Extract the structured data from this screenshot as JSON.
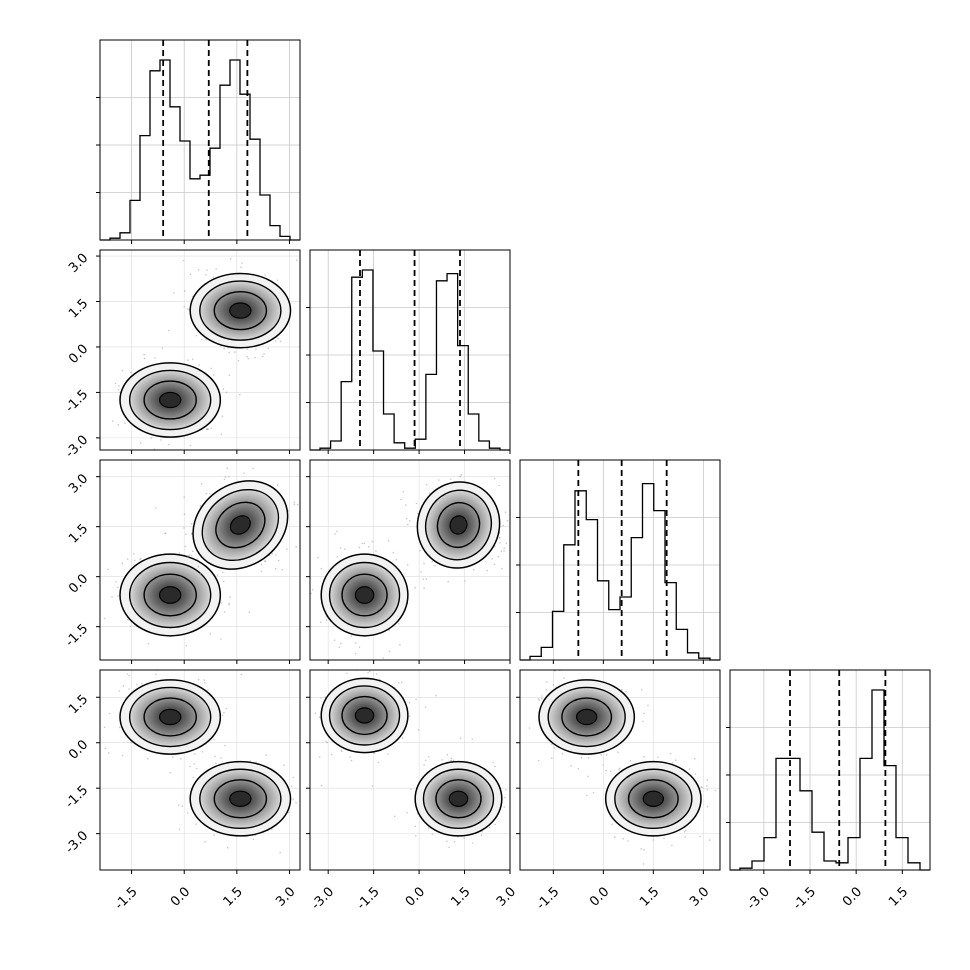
{
  "chart_data": {
    "type": "corner",
    "n_params": 4,
    "grid": true,
    "hist_lines": [
      [
        -0.6,
        0.7,
        1.8
      ],
      [
        -1.95,
        -0.15,
        1.35
      ],
      [
        -0.75,
        0.55,
        1.9
      ],
      [
        -2.15,
        -0.55,
        0.95
      ]
    ],
    "hist_values": [
      [
        0.01,
        0.04,
        0.22,
        0.58,
        0.94,
        1.0,
        0.74,
        0.55,
        0.34,
        0.36,
        0.51,
        0.86,
        1.0,
        0.81,
        0.56,
        0.25,
        0.08,
        0.02
      ],
      [
        0.01,
        0.05,
        0.38,
        0.96,
        1.0,
        0.55,
        0.2,
        0.04,
        0.01,
        0.06,
        0.42,
        0.94,
        0.98,
        0.58,
        0.2,
        0.05,
        0.01
      ],
      [
        0.02,
        0.07,
        0.27,
        0.64,
        0.94,
        0.78,
        0.44,
        0.28,
        0.35,
        0.68,
        0.98,
        0.83,
        0.43,
        0.17,
        0.04,
        0.01
      ],
      [
        0.01,
        0.05,
        0.18,
        0.62,
        0.62,
        0.44,
        0.21,
        0.05,
        0.04,
        0.18,
        0.62,
        1.0,
        0.58,
        0.18,
        0.04
      ]
    ],
    "blobs": [
      {
        "row": 1,
        "col": 0,
        "centers": [
          [
            -0.4,
            -1.75
          ],
          [
            1.6,
            1.2
          ]
        ]
      },
      {
        "row": 2,
        "col": 0,
        "centers": [
          [
            -0.4,
            -0.55
          ],
          [
            1.6,
            1.55
          ]
        ]
      },
      {
        "row": 2,
        "col": 1,
        "centers": [
          [
            -1.8,
            -0.55
          ],
          [
            1.3,
            1.55
          ]
        ]
      },
      {
        "row": 3,
        "col": 0,
        "centers": [
          [
            -0.4,
            0.85
          ],
          [
            1.6,
            -1.85
          ]
        ]
      },
      {
        "row": 3,
        "col": 1,
        "centers": [
          [
            -1.8,
            0.9
          ],
          [
            1.3,
            -1.85
          ]
        ]
      },
      {
        "row": 3,
        "col": 2,
        "centers": [
          [
            -0.5,
            0.85
          ],
          [
            1.5,
            -1.85
          ]
        ]
      }
    ],
    "axes": {
      "x": [
        {
          "range": [
            -2.4,
            3.3
          ],
          "ticks": [
            "-1.5",
            "0.0",
            "1.5",
            "3.0"
          ]
        },
        {
          "range": [
            -3.6,
            3.0
          ],
          "ticks": [
            "-3.0",
            "-1.5",
            "0.0",
            "1.5",
            "3.0"
          ]
        },
        {
          "range": [
            -2.5,
            3.5
          ],
          "ticks": [
            "-1.5",
            "0.0",
            "1.5",
            "3.0"
          ]
        },
        {
          "range": [
            -4.1,
            2.4
          ],
          "ticks": [
            "-3.0",
            "-1.5",
            "0.0",
            "1.5"
          ]
        }
      ],
      "y": [
        null,
        {
          "range": [
            -3.4,
            3.2
          ],
          "ticks": [
            "-3.0",
            "-1.5",
            "0.0",
            "1.5",
            "3.0"
          ]
        },
        {
          "range": [
            -2.5,
            3.5
          ],
          "ticks": [
            "-1.5",
            "0.0",
            "1.5",
            "3.0"
          ]
        },
        {
          "range": [
            -4.2,
            2.4
          ],
          "ticks": [
            "-3.0",
            "-1.5",
            "0.0",
            "1.5"
          ]
        }
      ]
    }
  }
}
